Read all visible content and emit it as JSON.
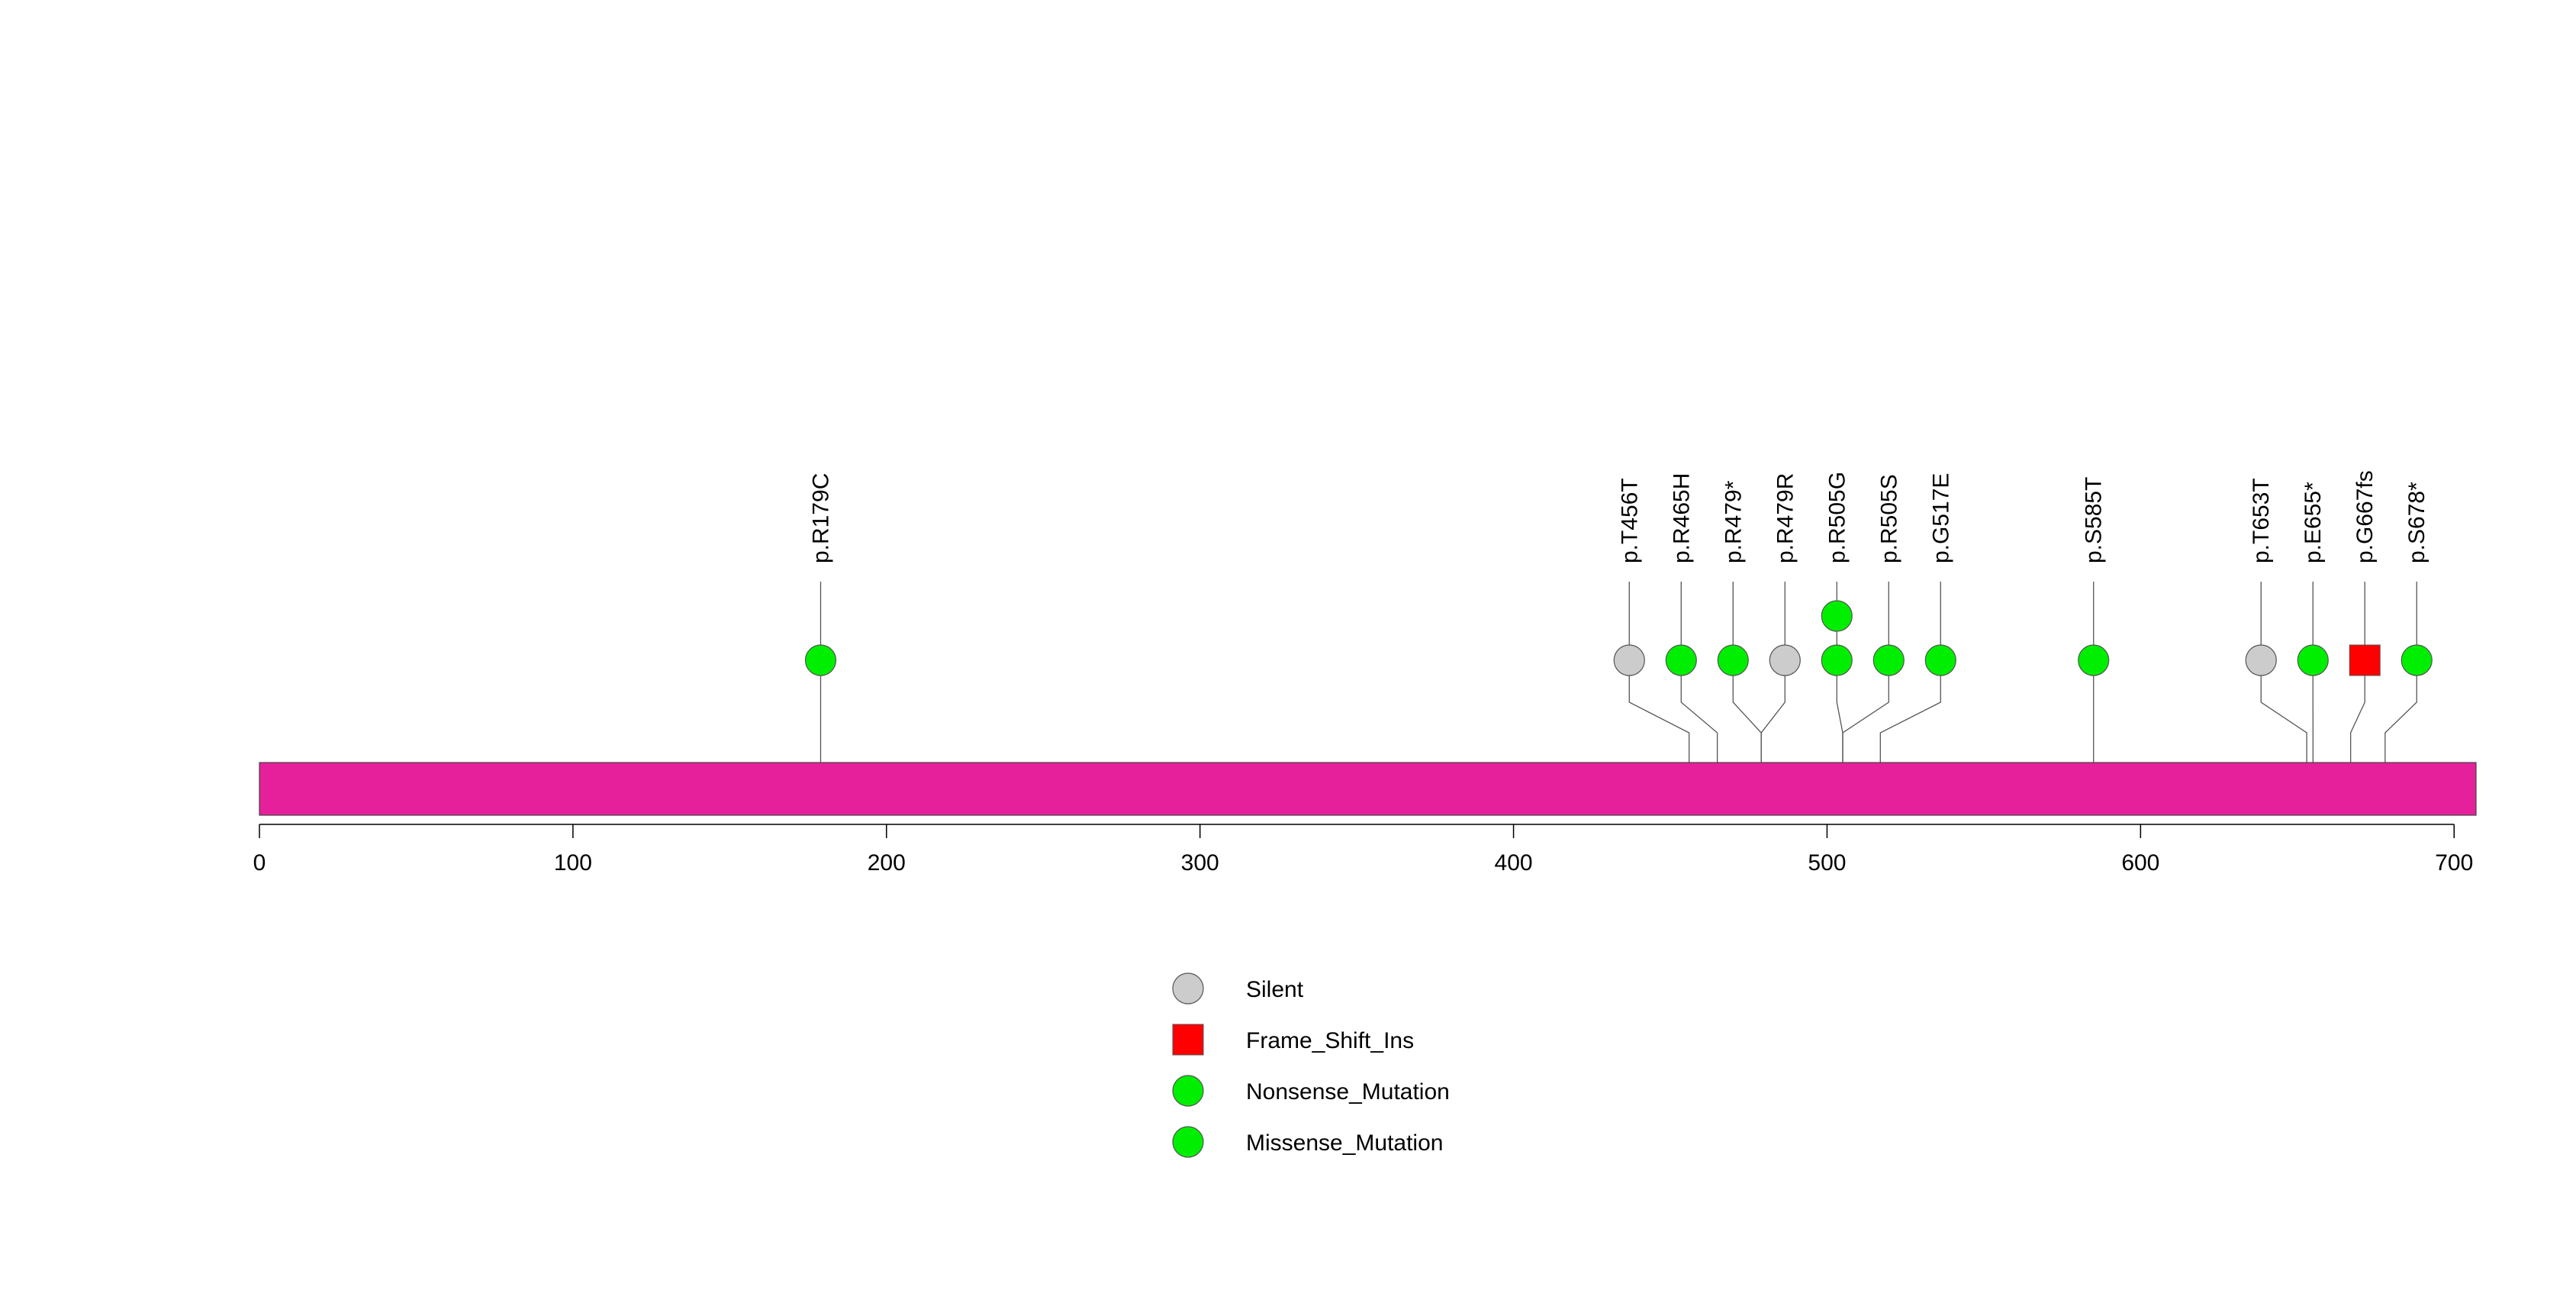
{
  "chart_data": {
    "type": "lollipop",
    "protein_length": 707,
    "axis": {
      "min": 0,
      "max": 707,
      "ticks": [
        0,
        100,
        200,
        300,
        400,
        500,
        600,
        700
      ]
    },
    "domain_color": "#e6209a",
    "mutations": [
      {
        "label": "p.R179C",
        "position": 179,
        "stack": [
          {
            "type": "Missense_Mutation"
          }
        ]
      },
      {
        "label": "p.T456T",
        "position": 456,
        "stack": [
          {
            "type": "Silent"
          }
        ]
      },
      {
        "label": "p.R465H",
        "position": 465,
        "stack": [
          {
            "type": "Missense_Mutation"
          }
        ]
      },
      {
        "label": "p.R479*",
        "position": 479,
        "stack": [
          {
            "type": "Nonsense_Mutation"
          }
        ]
      },
      {
        "label": "p.R479R",
        "position": 479,
        "stack": [
          {
            "type": "Silent"
          }
        ]
      },
      {
        "label": "p.R505G",
        "position": 505,
        "stack": [
          {
            "type": "Missense_Mutation"
          },
          {
            "type": "Missense_Mutation"
          }
        ]
      },
      {
        "label": "p.R505S",
        "position": 505,
        "stack": [
          {
            "type": "Missense_Mutation"
          }
        ]
      },
      {
        "label": "p.G517E",
        "position": 517,
        "stack": [
          {
            "type": "Missense_Mutation"
          }
        ]
      },
      {
        "label": "p.S585T",
        "position": 585,
        "stack": [
          {
            "type": "Missense_Mutation"
          }
        ]
      },
      {
        "label": "p.T653T",
        "position": 653,
        "stack": [
          {
            "type": "Silent"
          }
        ]
      },
      {
        "label": "p.E655*",
        "position": 655,
        "stack": [
          {
            "type": "Nonsense_Mutation"
          }
        ]
      },
      {
        "label": "p.G667fs",
        "position": 667,
        "stack": [
          {
            "type": "Frame_Shift_Ins"
          }
        ]
      },
      {
        "label": "p.S678*",
        "position": 678,
        "stack": [
          {
            "type": "Nonsense_Mutation"
          }
        ]
      }
    ],
    "legend": [
      {
        "label": "Silent",
        "shape": "circle",
        "color": "#cccccc"
      },
      {
        "label": "Frame_Shift_Ins",
        "shape": "square",
        "color": "#ff0000"
      },
      {
        "label": "Nonsense_Mutation",
        "shape": "circle",
        "color": "#00ee00"
      },
      {
        "label": "Missense_Mutation",
        "shape": "circle",
        "color": "#00ee00"
      }
    ]
  }
}
